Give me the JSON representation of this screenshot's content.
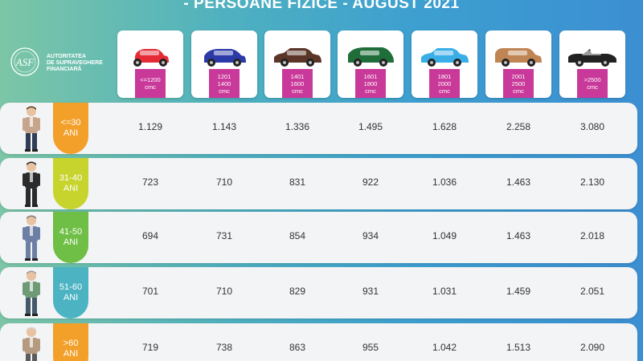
{
  "title": "- PERSOANE FIZICE - AUGUST 2021",
  "logo": {
    "icon": "asf-logo-icon",
    "lines": [
      "AUTORITATEA",
      "DE SUPRAVEGHERE",
      "FINANCIARĂ"
    ]
  },
  "columns": [
    {
      "line1": "<=1200",
      "line2": "",
      "unit": "cmc",
      "car_color": "#e42b36",
      "icon": "hatchback-car-icon"
    },
    {
      "line1": "1201",
      "line2": "1400",
      "unit": "cmc",
      "car_color": "#2c3aa8",
      "icon": "suv-car-icon"
    },
    {
      "line1": "1401",
      "line2": "1600",
      "unit": "cmc",
      "car_color": "#5a3528",
      "icon": "sedan-car-icon"
    },
    {
      "line1": "1601",
      "line2": "1800",
      "unit": "cmc",
      "car_color": "#1f6e3a",
      "icon": "minivan-car-icon"
    },
    {
      "line1": "1801",
      "line2": "2000",
      "unit": "cmc",
      "car_color": "#3aaee6",
      "icon": "sedan-car-icon"
    },
    {
      "line1": "2001",
      "line2": "2500",
      "unit": "cmc",
      "car_color": "#c08555",
      "icon": "estate-car-icon"
    },
    {
      "line1": ">2500",
      "line2": "",
      "unit": "cmc",
      "car_color": "#222222",
      "icon": "convertible-car-icon"
    }
  ],
  "rows": [
    {
      "age1": "<=30",
      "age2": "ANI",
      "age_color": "#f3a02b",
      "person": "young-man-icon",
      "values": [
        "1.129",
        "1.143",
        "1.336",
        "1.495",
        "1.628",
        "2.258",
        "3.080"
      ]
    },
    {
      "age1": "31-40",
      "age2": "ANI",
      "age_color": "#c7d42e",
      "person": "businessman-icon",
      "values": [
        "723",
        "710",
        "831",
        "922",
        "1.036",
        "1.463",
        "2.130"
      ]
    },
    {
      "age1": "41-50",
      "age2": "ANI",
      "age_color": "#6fbe45",
      "person": "middle-aged-man-icon",
      "values": [
        "694",
        "731",
        "854",
        "934",
        "1.049",
        "1.463",
        "2.018"
      ]
    },
    {
      "age1": "51-60",
      "age2": "ANI",
      "age_color": "#4bb3c2",
      "person": "mature-man-icon",
      "values": [
        "701",
        "710",
        "829",
        "931",
        "1.031",
        "1.459",
        "2.051"
      ]
    },
    {
      "age1": ">60",
      "age2": "ANI",
      "age_color": "#f3a02b",
      "person": "elderly-man-icon",
      "values": [
        "719",
        "738",
        "863",
        "955",
        "1.042",
        "1.513",
        "2.090"
      ]
    }
  ]
}
